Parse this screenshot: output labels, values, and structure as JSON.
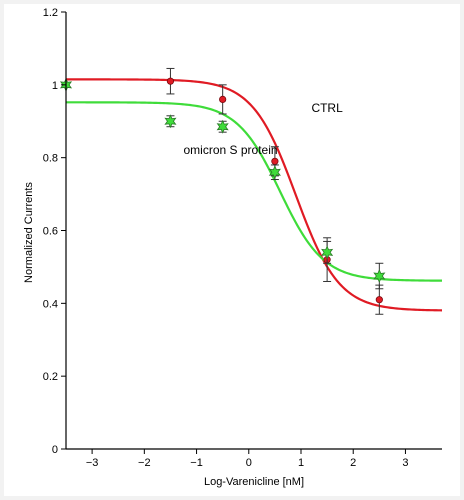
{
  "chart_data": {
    "type": "scatter",
    "xlabel": "Log-Varenicline [nM]",
    "ylabel": "Normalized Currents",
    "xlim": [
      -3.5,
      3.7
    ],
    "ylim": [
      0,
      1.2
    ],
    "x_ticks": [
      -3,
      -2,
      -1,
      0,
      1,
      2,
      3
    ],
    "x_tick_labels": [
      "−3",
      "−2",
      "−1",
      "0",
      "1",
      "2",
      "3"
    ],
    "y_ticks": [
      0,
      0.2,
      0.4,
      0.6,
      0.8,
      1,
      1.2
    ],
    "y_tick_labels": [
      "0",
      "0.2",
      "0.4",
      "0.6",
      "0.8",
      "1",
      "1.2"
    ],
    "grid": false,
    "series": [
      {
        "name": "CTRL",
        "color": "#e01b24",
        "marker": "circle",
        "points": [
          {
            "x": -3.5,
            "y": 1.0,
            "err": 0
          },
          {
            "x": -1.5,
            "y": 1.01,
            "err": 0.035
          },
          {
            "x": -0.5,
            "y": 0.96,
            "err": 0.04
          },
          {
            "x": 0.5,
            "y": 0.79,
            "err": 0.04
          },
          {
            "x": 1.5,
            "y": 0.52,
            "err": 0.06
          },
          {
            "x": 2.5,
            "y": 0.41,
            "err": 0.04
          }
        ],
        "fit": {
          "top": 1.015,
          "bottom": 0.38,
          "logIC50": 0.9,
          "hill": 1.05
        }
      },
      {
        "name": "omicron S protein",
        "color": "#3fdc3a",
        "marker": "star",
        "points": [
          {
            "x": -3.5,
            "y": 1.0,
            "err": 0
          },
          {
            "x": -1.5,
            "y": 0.9,
            "err": 0.015
          },
          {
            "x": -0.5,
            "y": 0.885,
            "err": 0.015
          },
          {
            "x": 0.5,
            "y": 0.76,
            "err": 0.02
          },
          {
            "x": 1.5,
            "y": 0.54,
            "err": 0.03
          },
          {
            "x": 2.5,
            "y": 0.475,
            "err": 0.035
          }
        ],
        "fit": {
          "top": 0.952,
          "bottom": 0.462,
          "logIC50": 0.6,
          "hill": 1.05
        }
      }
    ],
    "annotations": [
      {
        "text": "CTRL",
        "x": 1.2,
        "y": 0.925
      },
      {
        "text": "omicron S protein",
        "x": -1.25,
        "y": 0.81
      }
    ]
  }
}
